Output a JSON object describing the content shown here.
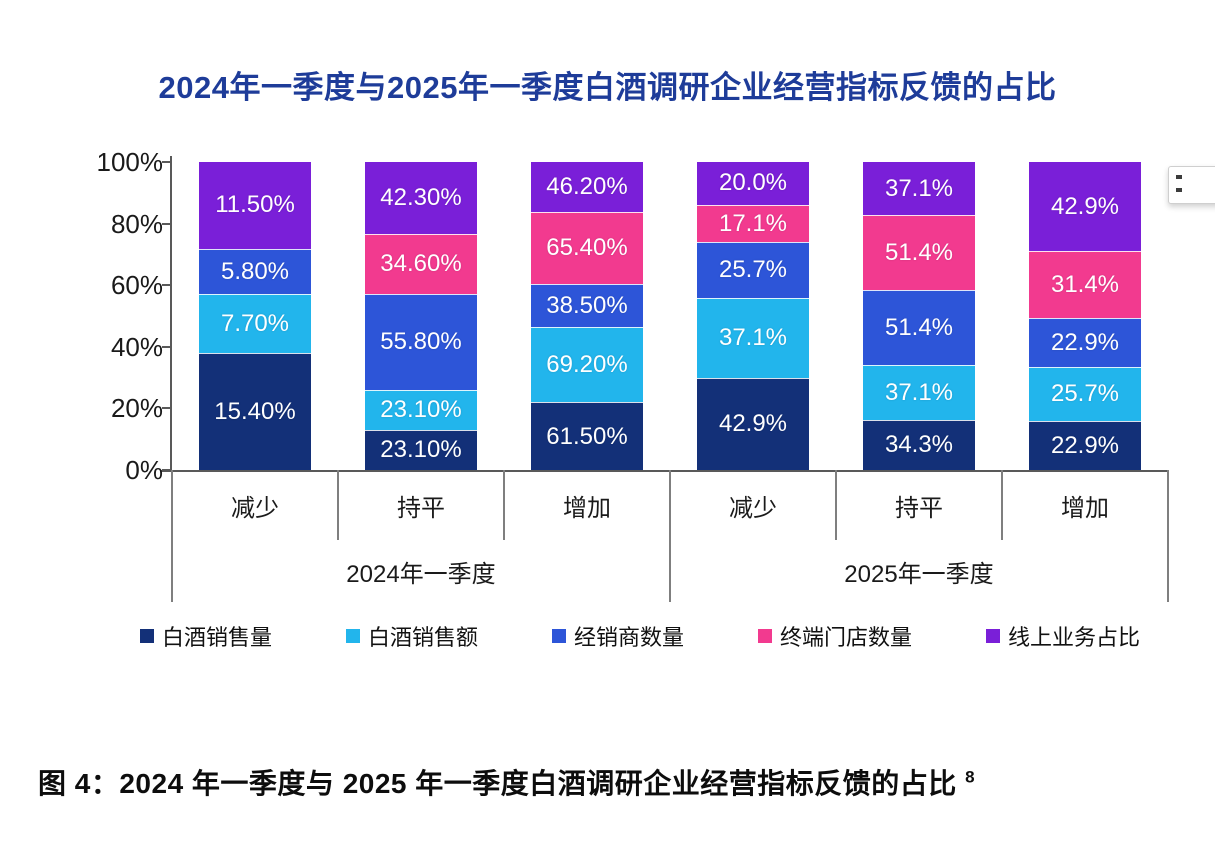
{
  "title": "2024年一季度与2025年一季度白酒调研企业经营指标反馈的占比",
  "caption": {
    "text": "图 4：2024 年一季度与 2025 年一季度白酒调研企业经营指标反馈的占比",
    "superscript": "8"
  },
  "chart_data": {
    "type": "bar",
    "subtype": "100-percent-stacked-column",
    "normalized_per_bar": true,
    "categories": [
      "减少",
      "持平",
      "增加",
      "减少",
      "持平",
      "增加"
    ],
    "group_labels": [
      "2024年一季度",
      "2025年一季度"
    ],
    "y_axis": {
      "tick_labels": [
        "100%",
        "80%",
        "60%",
        "40%",
        "20%",
        "0%"
      ],
      "min": 0,
      "max": 100,
      "grid": false
    },
    "series": [
      {
        "name": "白酒销售量",
        "color": "#133078",
        "values": [
          15.4,
          23.1,
          61.5,
          42.9,
          34.3,
          22.9
        ],
        "labels": [
          "15.40%",
          "23.10%",
          "61.50%",
          "42.9%",
          "34.3%",
          "22.9%"
        ]
      },
      {
        "name": "白酒销售额",
        "color": "#22b5ec",
        "values": [
          7.7,
          23.1,
          69.2,
          37.1,
          37.1,
          25.7
        ],
        "labels": [
          "7.70%",
          "23.10%",
          "69.20%",
          "37.1%",
          "37.1%",
          "25.7%"
        ]
      },
      {
        "name": "经销商数量",
        "color": "#2d55d8",
        "values": [
          5.8,
          55.8,
          38.5,
          25.7,
          51.4,
          22.9
        ],
        "labels": [
          "5.80%",
          "55.80%",
          "38.50%",
          "25.7%",
          "51.4%",
          "22.9%"
        ]
      },
      {
        "name": "终端门店数量",
        "color": "#f23a8f",
        "values": [
          null,
          34.6,
          65.4,
          17.1,
          51.4,
          31.4
        ],
        "labels": [
          "",
          "34.60%",
          "65.40%",
          "17.1%",
          "51.4%",
          "31.4%"
        ]
      },
      {
        "name": "线上业务占比",
        "color": "#7a1fd8",
        "values": [
          11.5,
          42.3,
          46.2,
          20.0,
          37.1,
          42.9
        ],
        "labels": [
          "11.50%",
          "42.30%",
          "46.20%",
          "20.0%",
          "37.1%",
          "42.9%"
        ]
      }
    ],
    "legend": [
      "白酒销售量",
      "白酒销售额",
      "经销商数量",
      "终端门店数量",
      "线上业务占比"
    ],
    "legend_position": "bottom"
  },
  "colors": {
    "title": "#1e3c99",
    "axis_text": "#1a1a1a",
    "axis_line": "#595959",
    "separator_line": "#7f7f7f",
    "data_label": "#ffffff",
    "caption_text": "#0d0d0d"
  }
}
